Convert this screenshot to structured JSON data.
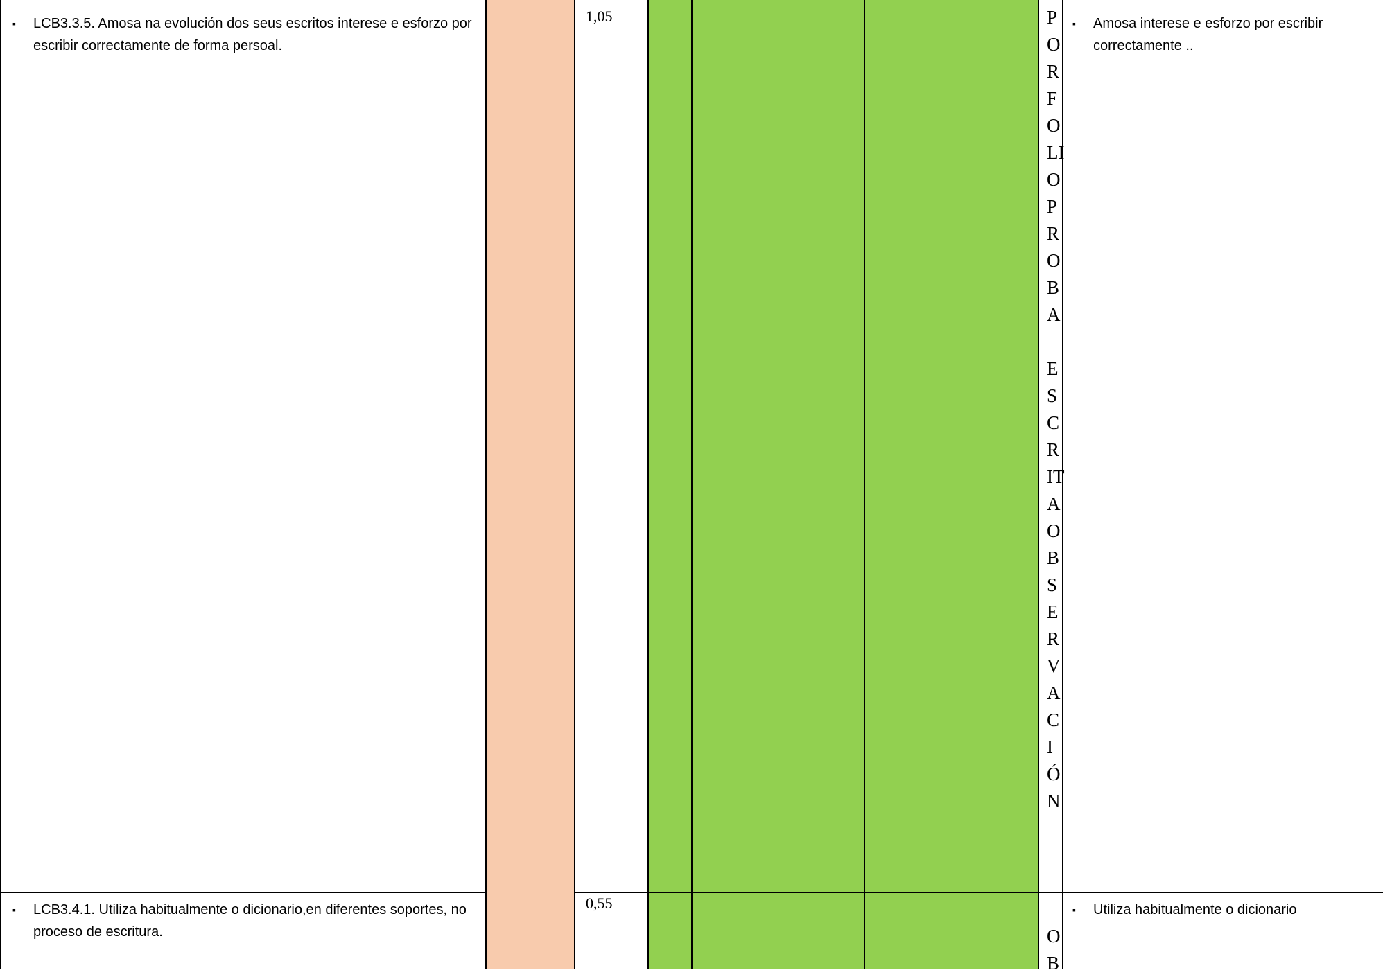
{
  "rows": [
    {
      "standard": "LCB3.3.5. Amosa na evolución dos seus escritos interese e esforzo por escribir correctamente de forma persoal.",
      "weight": "1,05",
      "instrument": "PORFOLIOPROBA\n\nESCRITAOBSERVACIÓN",
      "indicator": "Amosa interese e esforzo por escribir correctamente .."
    },
    {
      "standard": "LCB3.4.1. Utiliza habitualmente o dicionario,en diferentes soportes, no proceso de escritura.",
      "weight": "0,55",
      "instrument": "\nOB",
      "indicator": "Utiliza habitualmente o dicionario"
    }
  ],
  "bullet_glyph": "▪",
  "colors": {
    "peach": "#F8CBAD",
    "green": "#92D050",
    "border": "#000000"
  }
}
